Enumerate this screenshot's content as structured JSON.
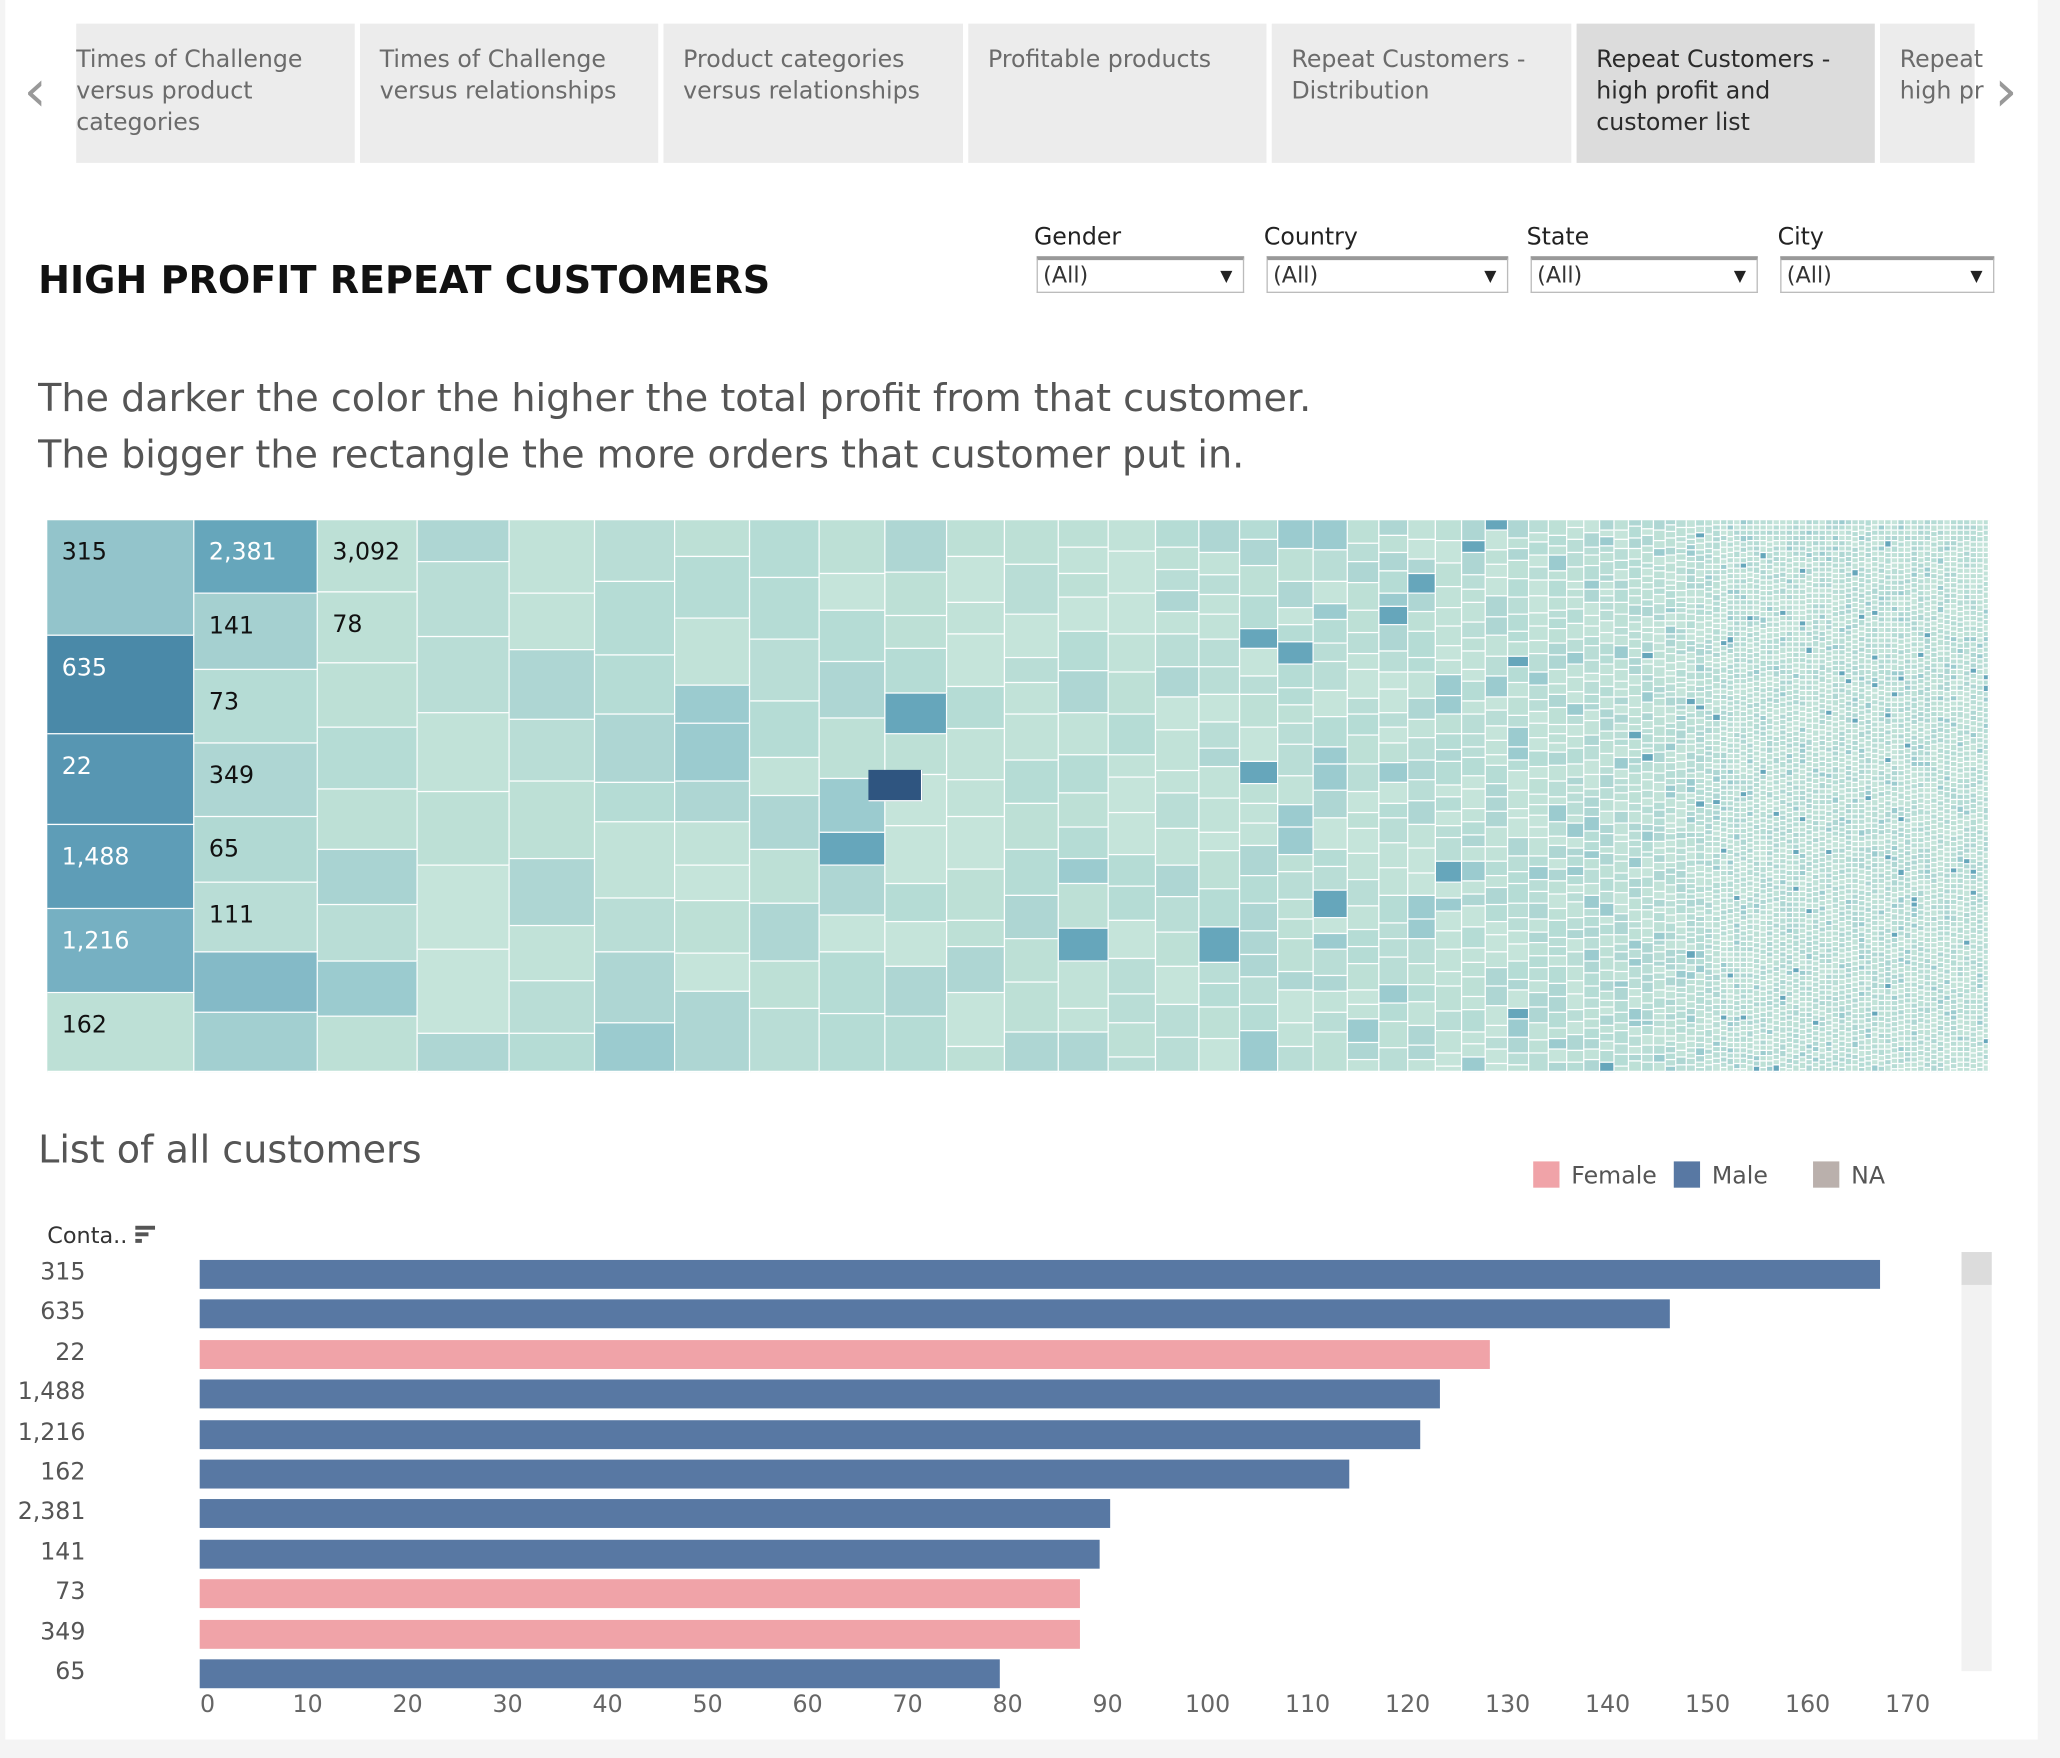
{
  "tabs": [
    {
      "lines": [
        "Times of Challenge",
        "versus product",
        "categories"
      ]
    },
    {
      "lines": [
        "Times of Challenge",
        "versus relationships"
      ]
    },
    {
      "lines": [
        "Product categories",
        "versus relationships"
      ]
    },
    {
      "lines": [
        "Profitable products"
      ]
    },
    {
      "lines": [
        "Repeat Customers -",
        "Distribution"
      ]
    },
    {
      "lines": [
        "Repeat Customers -",
        "high profit and",
        "customer list"
      ],
      "active": true
    },
    {
      "lines": [
        "Repeat",
        "high pr"
      ]
    }
  ],
  "nav": {
    "prev": "‹",
    "next": "›"
  },
  "title": "HIGH PROFIT REPEAT CUSTOMERS",
  "filters": [
    {
      "label": "Gender",
      "value": "(All)"
    },
    {
      "label": "Country",
      "value": "(All)"
    },
    {
      "label": "State",
      "value": "(All)"
    },
    {
      "label": "City",
      "value": "(All)"
    }
  ],
  "description": [
    "The darker the color the higher the total profit from that customer.",
    "The bigger the rectangle the more orders that customer put in."
  ],
  "treemap": {
    "labeled_cells": [
      {
        "label": "315",
        "color": "#93c4cb"
      },
      {
        "label": "635",
        "color": "#4a89a8"
      },
      {
        "label": "22",
        "color": "#5796b2"
      },
      {
        "label": "1,488",
        "color": "#5e9db7"
      },
      {
        "label": "1,216",
        "color": "#76b0c2"
      },
      {
        "label": "162",
        "color": "#bde0d6"
      },
      {
        "label": "2,381",
        "color": "#66a6bb"
      },
      {
        "label": "141",
        "color": "#a5d0d0"
      },
      {
        "label": "73",
        "color": "#b5dcd5"
      },
      {
        "label": "349",
        "color": "#aed6d3"
      },
      {
        "label": "65",
        "color": "#b1d9d3"
      },
      {
        "label": "111",
        "color": "#b9ddd6"
      },
      {
        "label": "3,092",
        "color": "#bde0d6"
      },
      {
        "label": "78",
        "color": "#bde0d6"
      }
    ],
    "base_color": "#bde0d6"
  },
  "list": {
    "title": "List of all customers",
    "sort_label": "Conta..",
    "legend": [
      {
        "label": "Female",
        "color": "#f0a3a8"
      },
      {
        "label": "Male",
        "color": "#5878a3"
      },
      {
        "label": "NA",
        "color": "#bab0ac"
      }
    ]
  },
  "chart_data": {
    "type": "bar",
    "orientation": "horizontal",
    "ylabel": "Conta..",
    "categories": [
      "315",
      "635",
      "22",
      "1,488",
      "1,216",
      "162",
      "2,381",
      "141",
      "73",
      "349",
      "65"
    ],
    "values": [
      168,
      147,
      129,
      124,
      122,
      115,
      91,
      90,
      88,
      88,
      80
    ],
    "gender": [
      "Male",
      "Male",
      "Female",
      "Male",
      "Male",
      "Male",
      "Male",
      "Male",
      "Female",
      "Female",
      "Male"
    ],
    "xlim": [
      0,
      170
    ],
    "xticks": [
      "0",
      "10",
      "20",
      "30",
      "40",
      "50",
      "60",
      "70",
      "80",
      "90",
      "100",
      "110",
      "120",
      "130",
      "140",
      "150",
      "160",
      "170"
    ]
  }
}
